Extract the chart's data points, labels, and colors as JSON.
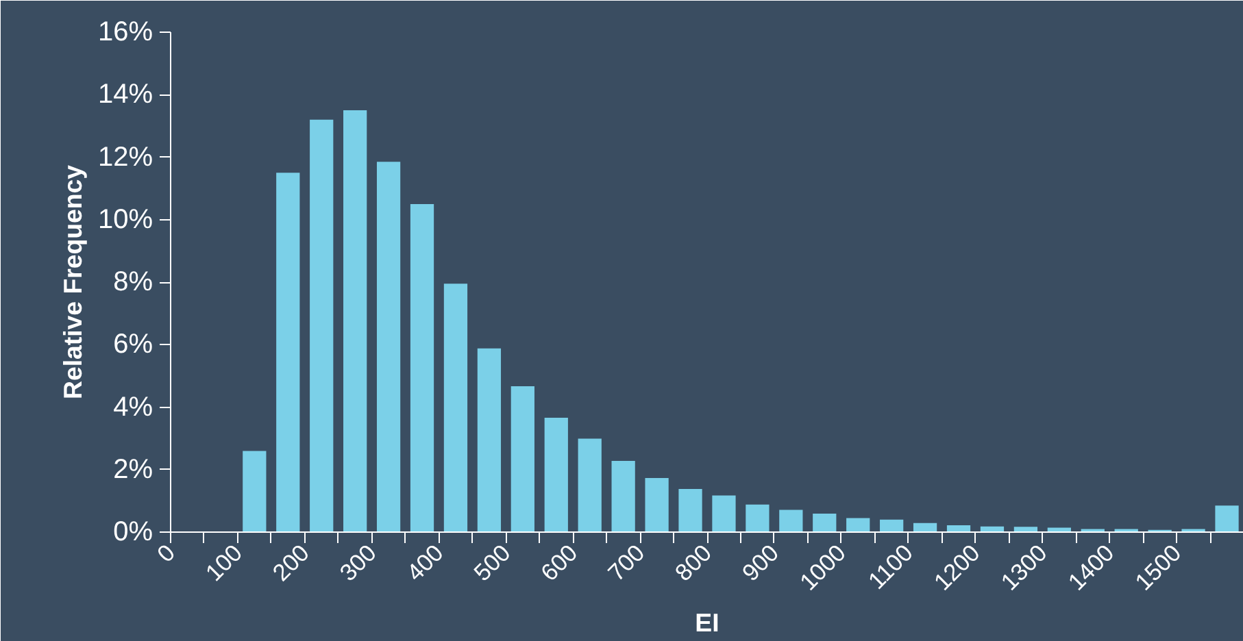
{
  "chart_data": {
    "type": "histogram",
    "xlabel": "EI",
    "ylabel": "Relative Frequency",
    "color": "#7bd0e8",
    "bins": [
      0,
      50,
      100,
      150,
      200,
      250,
      300,
      350,
      400,
      450,
      500,
      550,
      600,
      650,
      700,
      750,
      800,
      850,
      900,
      950,
      1000,
      1050,
      1100,
      1150,
      1200,
      1250,
      1300,
      1350,
      1400,
      1450,
      1500,
      1550,
      1600
    ],
    "values": [
      0,
      0,
      2.6,
      11.5,
      13.2,
      13.5,
      11.85,
      10.5,
      7.95,
      5.88,
      4.67,
      3.66,
      2.99,
      2.28,
      1.73,
      1.38,
      1.17,
      0.88,
      0.71,
      0.59,
      0.45,
      0.4,
      0.29,
      0.22,
      0.18,
      0.17,
      0.14,
      0.1,
      0.1,
      0.07,
      0.1,
      0.85
    ],
    "xlim": [
      0,
      1600
    ],
    "ylim": [
      0,
      16
    ],
    "xticks": [
      0,
      {
        "value": 50,
        "label": null
      },
      100,
      {
        "value": 150,
        "label": null
      },
      200,
      {
        "value": 250,
        "label": null
      },
      300,
      {
        "value": 350,
        "label": null
      },
      400,
      {
        "value": 450,
        "label": null
      },
      500,
      {
        "value": 550,
        "label": null
      },
      600,
      {
        "value": 650,
        "label": null
      },
      700,
      {
        "value": 750,
        "label": null
      },
      800,
      {
        "value": 850,
        "label": null
      },
      900,
      {
        "value": 950,
        "label": null
      },
      1000,
      {
        "value": 1050,
        "label": null
      },
      1100,
      {
        "value": 1150,
        "label": null
      },
      1200,
      {
        "value": 1250,
        "label": null
      },
      1300,
      {
        "value": 1350,
        "label": null
      },
      1400,
      {
        "value": 1450,
        "label": null
      },
      1500,
      {
        "value": 1550,
        "label": null
      }
    ],
    "yticks": [
      {
        "value": 0,
        "label": "0%"
      },
      {
        "value": 2,
        "label": "2%"
      },
      {
        "value": 4,
        "label": "4%"
      },
      {
        "value": 6,
        "label": "6%"
      },
      {
        "value": 8,
        "label": "8%"
      },
      {
        "value": 10,
        "label": "10%"
      },
      {
        "value": 12,
        "label": "12%"
      },
      {
        "value": 14,
        "label": "14%"
      },
      {
        "value": 16,
        "label": "16%"
      }
    ],
    "grid": false
  }
}
